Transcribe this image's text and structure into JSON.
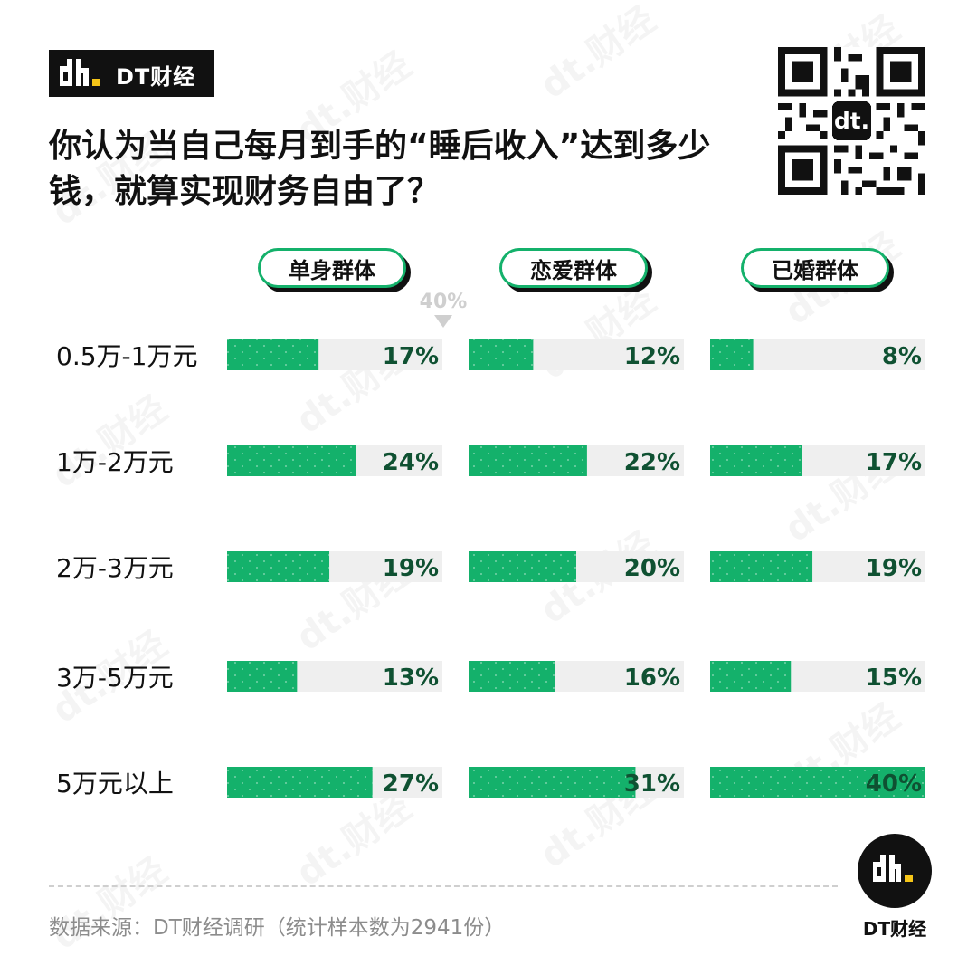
{
  "brand": {
    "name": "DT财经",
    "logo_text": "dt."
  },
  "title": "你认为当自己每月到手的“睡后收入”达到多少钱，就算实现财务自由了？",
  "chart_data": {
    "type": "bar",
    "orientation": "horizontal",
    "xlim": [
      0,
      40
    ],
    "categories": [
      "0.5万-1万元",
      "1万-2万元",
      "2万-3万元",
      "3万-5万元",
      "5万元以上"
    ],
    "series": [
      {
        "name": "单身群体",
        "values": [
          17,
          24,
          19,
          13,
          27
        ]
      },
      {
        "name": "恋爱群体",
        "values": [
          12,
          22,
          20,
          16,
          31
        ]
      },
      {
        "name": "已婚群体",
        "values": [
          8,
          17,
          19,
          15,
          40
        ]
      }
    ],
    "value_suffix": "%",
    "annotation": "40%",
    "colors": {
      "bar": "#14b16b",
      "track": "#efefef",
      "label": "#0f5132",
      "pill_border": "#14b16b"
    }
  },
  "footer": {
    "source": "数据来源：DT财经调研（统计样本数为2941份）",
    "logo_caption": "DT财经"
  },
  "icons": {
    "brand": "dt-logo-icon",
    "qr": "qr-code-icon"
  }
}
